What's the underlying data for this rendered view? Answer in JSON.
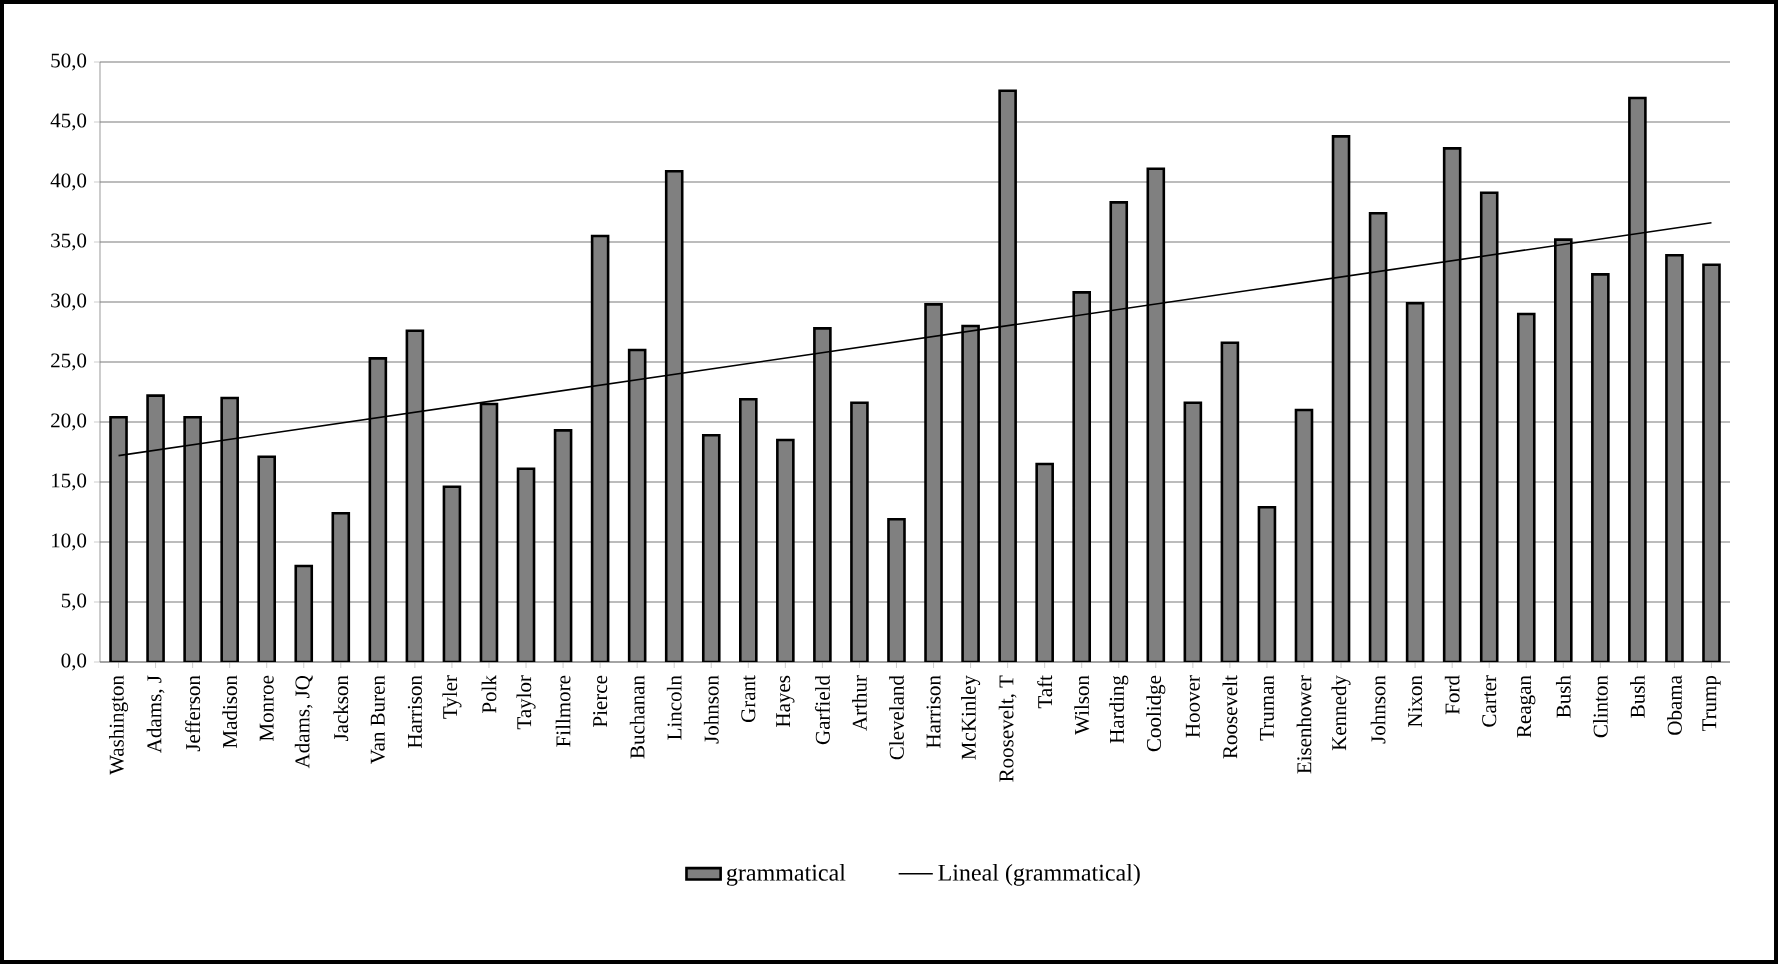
{
  "chart_data": {
    "type": "bar",
    "categories": [
      "Washington",
      "Adams, J",
      "Jefferson",
      "Madison",
      "Monroe",
      "Adams, JQ",
      "Jackson",
      "Van Buren",
      "Harrison",
      "Tyler",
      "Polk",
      "Taylor",
      "Fillmore",
      "Pierce",
      "Buchanan",
      "Lincoln",
      "Johnson",
      "Grant",
      "Hayes",
      "Garfield",
      "Arthur",
      "Cleveland",
      "Harrison",
      "McKinley",
      "Roosevelt, T",
      "Taft",
      "Wilson",
      "Harding",
      "Coolidge",
      "Hoover",
      "Roosevelt",
      "Truman",
      "Eisenhower",
      "Kennedy",
      "Johnson",
      "Nixon",
      "Ford",
      "Carter",
      "Reagan",
      "Bush",
      "Clinton",
      "Bush",
      "Obama",
      "Trump"
    ],
    "series": [
      {
        "name": "grammatical",
        "color": "#808080",
        "values": [
          20.4,
          22.2,
          20.4,
          22.0,
          17.1,
          8.0,
          12.4,
          25.3,
          27.6,
          14.6,
          21.5,
          16.1,
          19.3,
          35.5,
          26.0,
          40.9,
          18.9,
          21.9,
          18.5,
          27.8,
          21.6,
          11.9,
          29.8,
          28.0,
          47.6,
          16.5,
          30.8,
          38.3,
          41.1,
          21.6,
          26.6,
          12.9,
          21.0,
          43.8,
          37.4,
          29.9,
          42.8,
          39.1,
          29.0,
          35.2,
          32.3,
          47.0,
          33.9,
          33.1
        ]
      },
      {
        "name": "Lineal (grammatical)",
        "type": "line",
        "color": "#000000",
        "x": [
          "Washington",
          "Trump"
        ],
        "values": [
          17.2,
          36.6
        ]
      }
    ],
    "ylim": [
      0,
      50
    ],
    "yticks": [
      {
        "value": 0,
        "label": "0,0"
      },
      {
        "value": 5,
        "label": "5,0"
      },
      {
        "value": 10,
        "label": "10,0"
      },
      {
        "value": 15,
        "label": "15,0"
      },
      {
        "value": 20,
        "label": "20,0"
      },
      {
        "value": 25,
        "label": "25,0"
      },
      {
        "value": 30,
        "label": "30,0"
      },
      {
        "value": 35,
        "label": "35,0"
      },
      {
        "value": 40,
        "label": "40,0"
      },
      {
        "value": 45,
        "label": "45,0"
      },
      {
        "value": 50,
        "label": "50,0"
      }
    ],
    "grid": "y",
    "legend": "bottom"
  }
}
